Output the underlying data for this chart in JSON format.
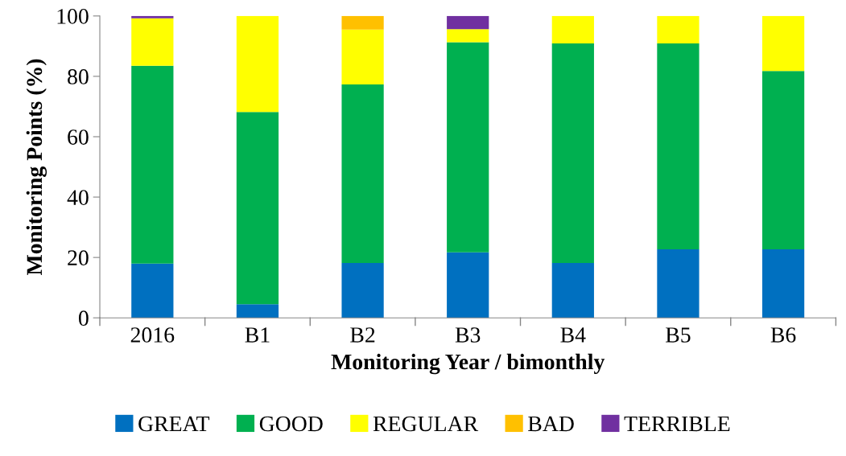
{
  "chart_data": {
    "type": "bar",
    "stacked": true,
    "xlabel": "Monitoring Year / bimonthly",
    "ylabel": "Monitoring Points (%)",
    "categories": [
      "2016",
      "B1",
      "B2",
      "B3",
      "B4",
      "B5",
      "B6"
    ],
    "series": [
      {
        "name": "GREAT",
        "color": "#0070c0",
        "values": [
          18.0,
          4.5,
          18.2,
          21.7,
          18.2,
          22.7,
          22.7
        ]
      },
      {
        "name": "GOOD",
        "color": "#00b050",
        "values": [
          65.5,
          63.7,
          59.1,
          69.6,
          72.7,
          68.2,
          59.1
        ]
      },
      {
        "name": "REGULAR",
        "color": "#ffff00",
        "values": [
          15.7,
          31.8,
          18.2,
          4.3,
          9.1,
          9.1,
          18.2
        ]
      },
      {
        "name": "BAD",
        "color": "#ffc000",
        "values": [
          0,
          0,
          4.5,
          0,
          0,
          0,
          0
        ]
      },
      {
        "name": "TERRIBLE",
        "color": "#7030a0",
        "values": [
          0.8,
          0,
          0,
          4.4,
          0,
          0,
          0
        ]
      }
    ],
    "ylim": [
      0,
      100
    ],
    "yticks": [
      0,
      20,
      40,
      60,
      80,
      100
    ],
    "grid": false,
    "legend": "bottom"
  }
}
